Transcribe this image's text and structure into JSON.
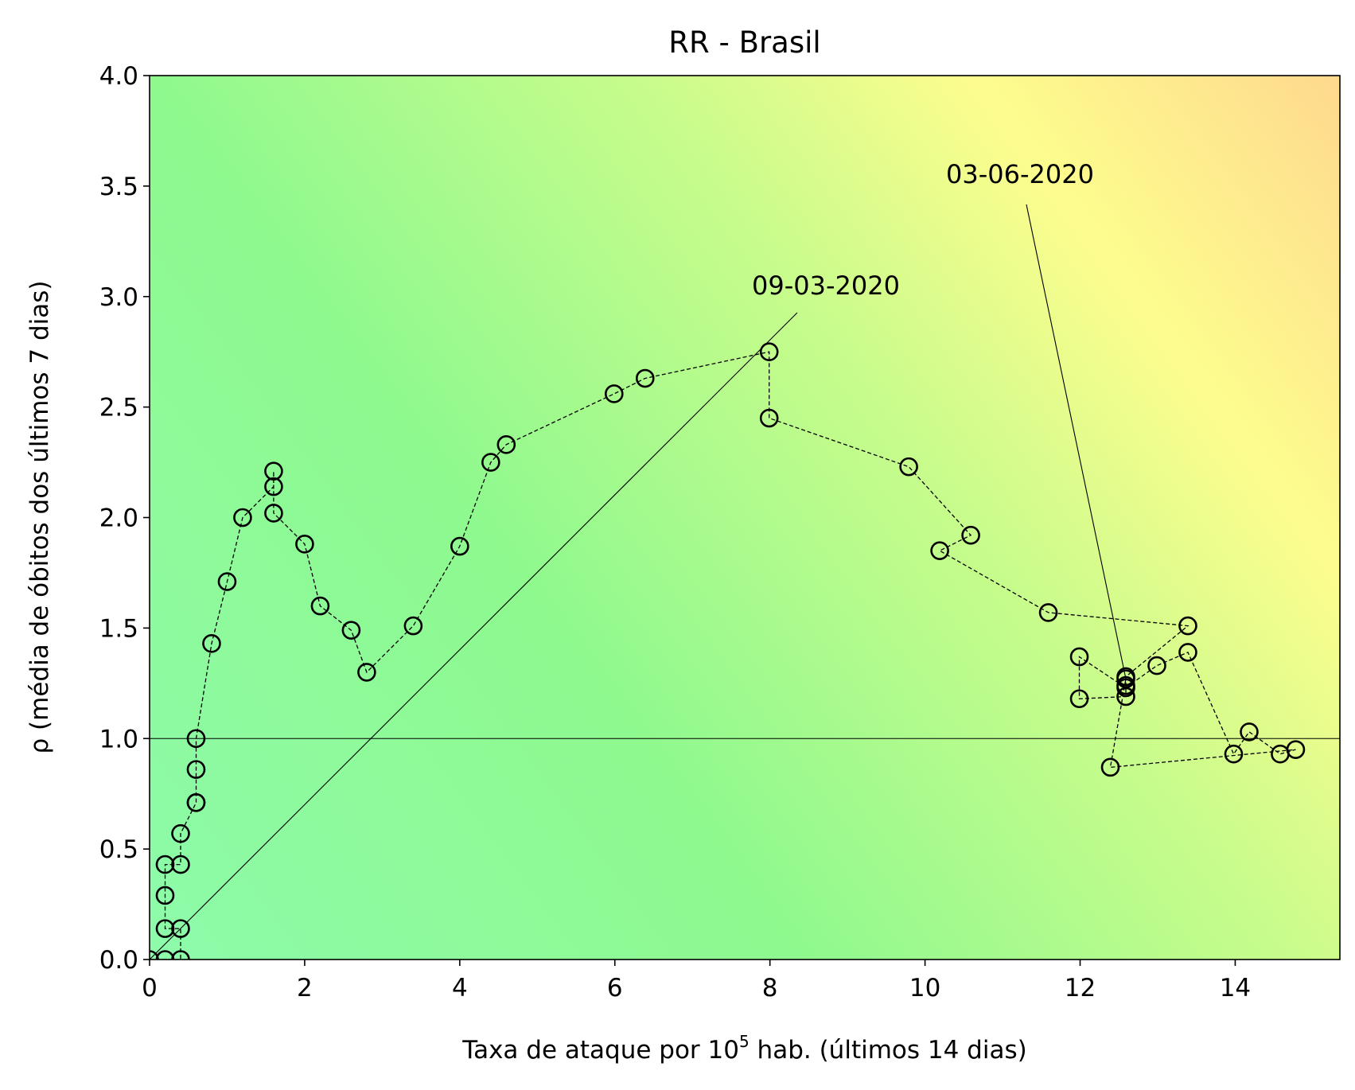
{
  "chart_data": {
    "type": "scatter",
    "title": "RR - Brasil",
    "xlabel": {
      "prefix": "Taxa de ataque por 10",
      "superscript": "5",
      "suffix": " hab. (últimos 14 dias)"
    },
    "ylabel": "ρ (média de óbitos dos últimos 7 dias)",
    "xlim": [
      0,
      15.35
    ],
    "ylim": [
      0,
      4.0
    ],
    "xticks": [
      0,
      2,
      4,
      6,
      8,
      10,
      12,
      14
    ],
    "xtick_labels": [
      "0",
      "2",
      "4",
      "6",
      "8",
      "10",
      "12",
      "14"
    ],
    "yticks": [
      0,
      0.5,
      1.0,
      1.5,
      2.0,
      2.5,
      3.0,
      3.5,
      4.0
    ],
    "ytick_labels": [
      "0.0",
      "0.5",
      "1.0",
      "1.5",
      "2.0",
      "2.5",
      "3.0",
      "3.5",
      "4.0"
    ],
    "reference_line_y": 1.0,
    "background": "gradient green (low) to yellow to orange (high)",
    "colors": {
      "green_low": "#8dfbaa",
      "green": "#8ef98e",
      "yellow": "#fdfd8e",
      "orange": "#fed98e",
      "marker_edge": "#000000"
    },
    "series": [
      {
        "marker": "open circle",
        "line": "dashed",
        "points": [
          [
            0.0,
            0.0
          ],
          [
            0.2,
            0.0
          ],
          [
            0.4,
            0.0
          ],
          [
            0.4,
            0.14
          ],
          [
            0.2,
            0.14
          ],
          [
            0.2,
            0.29
          ],
          [
            0.2,
            0.43
          ],
          [
            0.4,
            0.43
          ],
          [
            0.4,
            0.57
          ],
          [
            0.6,
            0.71
          ],
          [
            0.6,
            0.71
          ],
          [
            0.6,
            0.86
          ],
          [
            0.6,
            1.0
          ],
          [
            0.8,
            1.43
          ],
          [
            1.0,
            1.71
          ],
          [
            1.2,
            2.0
          ],
          [
            1.6,
            2.14
          ],
          [
            1.6,
            2.21
          ],
          [
            1.6,
            2.02
          ],
          [
            2.0,
            1.88
          ],
          [
            2.2,
            1.6
          ],
          [
            2.6,
            1.49
          ],
          [
            2.8,
            1.3
          ],
          [
            3.4,
            1.51
          ],
          [
            4.0,
            1.87
          ],
          [
            4.4,
            2.25
          ],
          [
            4.6,
            2.33
          ],
          [
            5.99,
            2.56
          ],
          [
            6.39,
            2.63
          ],
          [
            7.99,
            2.75
          ],
          [
            7.99,
            2.45
          ],
          [
            9.79,
            2.23
          ],
          [
            10.59,
            1.92
          ],
          [
            10.19,
            1.85
          ],
          [
            11.59,
            1.57
          ],
          [
            13.39,
            1.51
          ],
          [
            12.59,
            1.28
          ],
          [
            12.59,
            1.24
          ],
          [
            12.59,
            1.19
          ],
          [
            11.99,
            1.18
          ],
          [
            11.99,
            1.37
          ],
          [
            12.59,
            1.23
          ],
          [
            12.99,
            1.33
          ],
          [
            13.39,
            1.39
          ],
          [
            13.98,
            0.93
          ],
          [
            14.18,
            1.03
          ],
          [
            14.58,
            0.93
          ],
          [
            14.78,
            0.95
          ],
          [
            12.39,
            0.87
          ],
          [
            12.59,
            1.27
          ]
        ]
      }
    ],
    "annotations": [
      {
        "text": "09-03-2020",
        "target": [
          0.0,
          0.0
        ]
      },
      {
        "text": "03-06-2020",
        "target": [
          12.59,
          1.27
        ]
      }
    ]
  }
}
